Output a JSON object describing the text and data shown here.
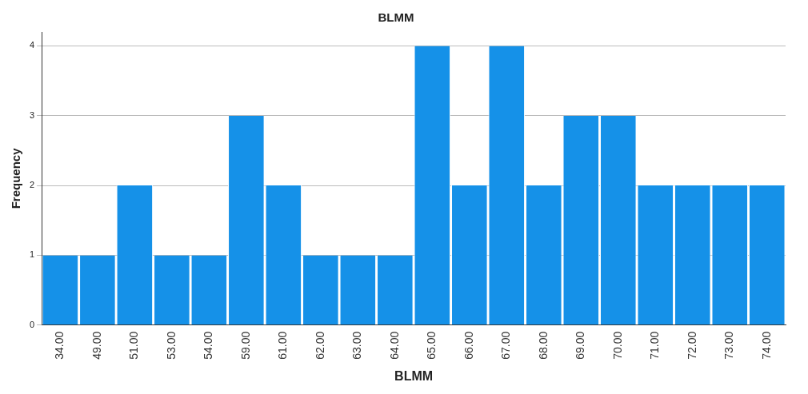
{
  "chart_data": {
    "type": "bar",
    "title": "BLMM",
    "xlabel": "BLMM",
    "ylabel": "Frequency",
    "categories": [
      "34.00",
      "49.00",
      "51.00",
      "53.00",
      "54.00",
      "59.00",
      "61.00",
      "62.00",
      "63.00",
      "64.00",
      "65.00",
      "66.00",
      "67.00",
      "68.00",
      "69.00",
      "70.00",
      "71.00",
      "72.00",
      "73.00",
      "74.00"
    ],
    "values": [
      1,
      1,
      2,
      1,
      1,
      3,
      2,
      1,
      1,
      1,
      4,
      2,
      4,
      2,
      3,
      3,
      2,
      2,
      2,
      2
    ],
    "color": "#1591e8",
    "ylim": [
      0,
      4.2
    ],
    "yticks": [
      0,
      1,
      2,
      3,
      4
    ],
    "grid": "y",
    "legend": false
  }
}
